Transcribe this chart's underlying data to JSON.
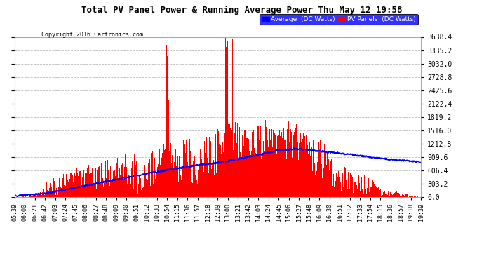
{
  "title": "Total PV Panel Power & Running Average Power Thu May 12 19:58",
  "copyright": "Copyright 2016 Cartronics.com",
  "ylim": [
    0,
    3638.4
  ],
  "yticks": [
    0.0,
    303.2,
    606.4,
    909.6,
    1212.8,
    1516.0,
    1819.2,
    2122.4,
    2425.6,
    2728.8,
    3032.0,
    3335.2,
    3638.4
  ],
  "legend_avg_label": "Average  (DC Watts)",
  "legend_pv_label": "PV Panels  (DC Watts)",
  "bg_color": "#ffffff",
  "bar_color": "#ff0000",
  "line_color": "#0000ff",
  "grid_color": "#bbbbbb",
  "x_tick_labels": [
    "05:39",
    "06:00",
    "06:21",
    "06:42",
    "07:03",
    "07:24",
    "07:45",
    "08:06",
    "08:27",
    "08:48",
    "09:09",
    "09:30",
    "09:51",
    "10:12",
    "10:33",
    "10:54",
    "11:15",
    "11:36",
    "11:57",
    "12:18",
    "12:39",
    "13:00",
    "13:21",
    "13:42",
    "14:03",
    "14:24",
    "14:45",
    "15:06",
    "15:27",
    "15:48",
    "16:09",
    "16:30",
    "16:51",
    "17:12",
    "17:33",
    "17:54",
    "18:15",
    "18:36",
    "18:57",
    "19:18",
    "19:39"
  ]
}
